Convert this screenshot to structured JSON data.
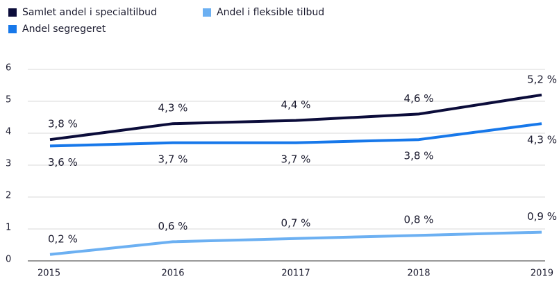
{
  "chart_data": {
    "type": "line",
    "categories": [
      "2015",
      "2016",
      "20117",
      "2018",
      "2019"
    ],
    "series": [
      {
        "name": "Samlet andel i specialtilbud",
        "color": "#0b0c3a",
        "values": [
          3.8,
          4.3,
          4.4,
          4.6,
          5.2
        ],
        "value_labels": [
          "3,8 %",
          "4,3 %",
          "4,4 %",
          "4,6 %",
          "5,2 %"
        ]
      },
      {
        "name": "Andel segregeret",
        "color": "#1778ea",
        "values": [
          3.6,
          3.7,
          3.7,
          3.8,
          4.3
        ],
        "value_labels": [
          "3,6 %",
          "3,7 %",
          "3,7 %",
          "3,8 %",
          "4,3 %"
        ]
      },
      {
        "name": "Andel i fleksible tilbud",
        "color": "#6cb0f2",
        "values": [
          0.2,
          0.6,
          0.7,
          0.8,
          0.9
        ],
        "value_labels": [
          "0,2 %",
          "0,6 %",
          "0,7 %",
          "0,8 %",
          "0,9 %"
        ]
      }
    ],
    "ylim": [
      0,
      6
    ],
    "yticks": [
      0,
      1,
      2,
      3,
      4,
      5,
      6
    ],
    "grid": true
  }
}
